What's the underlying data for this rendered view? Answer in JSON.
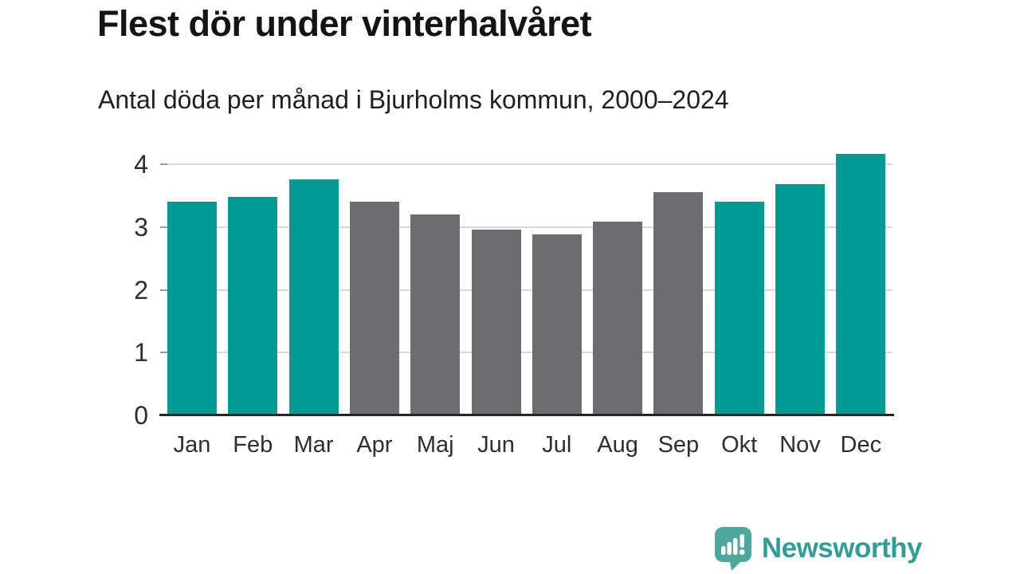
{
  "header": {
    "title": "Flest dör under vinterhalvåret",
    "subtitle": "Antal döda per månad i Bjurholms kommun, 2000–2024"
  },
  "chart_data": {
    "type": "bar",
    "title": "Flest dör under vinterhalvåret",
    "subtitle": "Antal döda per månad i Bjurholms kommun, 2000–2024",
    "categories": [
      "Jan",
      "Feb",
      "Mar",
      "Apr",
      "Maj",
      "Jun",
      "Jul",
      "Aug",
      "Sep",
      "Okt",
      "Nov",
      "Dec"
    ],
    "values": [
      3.4,
      3.48,
      3.76,
      3.4,
      3.2,
      2.96,
      2.88,
      3.08,
      3.56,
      3.4,
      3.68,
      4.16
    ],
    "highlighted": [
      true,
      true,
      true,
      false,
      false,
      false,
      false,
      false,
      false,
      true,
      true,
      true
    ],
    "highlight_color": "#009a93",
    "default_color": "#6e6c71",
    "xlabel": "",
    "ylabel": "",
    "ylim": [
      0,
      4.3
    ],
    "yticks": [
      0,
      1,
      2,
      3,
      4
    ],
    "grid": true,
    "legend": false
  },
  "branding": {
    "logo_text": "Newsworthy",
    "logo_icon": "newsworthy-chart-bubble-icon",
    "logo_icon_color": "#4fa79c",
    "logo_text_color": "#349c95"
  }
}
